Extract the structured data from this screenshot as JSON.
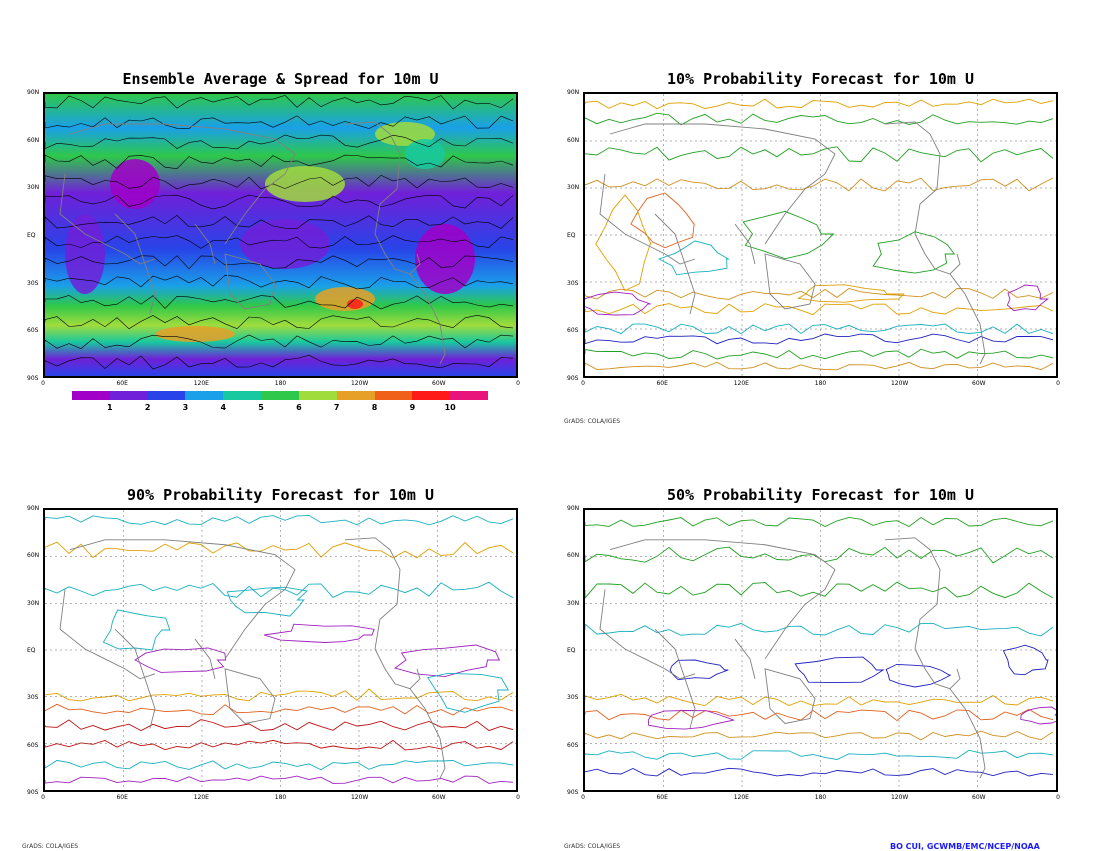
{
  "panels": {
    "p1": {
      "title": "Ensemble Average & Spread for 10m U"
    },
    "p2": {
      "title": "10% Probability Forecast for 10m U"
    },
    "p3": {
      "title": "90% Probability Forecast for 10m U"
    },
    "p4": {
      "title": "50% Probability Forecast for 10m U"
    }
  },
  "lat_labels": [
    "90N",
    "60N",
    "30N",
    "EQ",
    "30S",
    "60S",
    "90S"
  ],
  "lon_labels": [
    "0",
    "60E",
    "120E",
    "180",
    "120W",
    "60W",
    "0"
  ],
  "colorbar": {
    "labels": [
      "1",
      "2",
      "3",
      "4",
      "5",
      "6",
      "7",
      "8",
      "9",
      "10"
    ],
    "colors": [
      "#a000c8",
      "#7020d8",
      "#2844e8",
      "#1aa0e8",
      "#18c8a0",
      "#2ec84a",
      "#a0dc3c",
      "#e6a028",
      "#f06018",
      "#ff1a1a",
      "#e8147c"
    ]
  },
  "credits": {
    "grads1": "GrADS: COLA/IGES",
    "grads2": "GrADS: COLA/IGES",
    "grads3": "GrADS: COLA/IGES",
    "author": "BO CUI, GCWMB/EMC/NCEP/NOAA"
  },
  "contour_colors": {
    "neg8": "#2020c0",
    "neg4": "#a020c0",
    "zero": "#20a020",
    "pos4": "#d09020",
    "pos8": "#e0a000",
    "pos12": "#e06020",
    "pos16": "#c01010",
    "cyan": "#18b0c0",
    "coast": "#808080"
  }
}
